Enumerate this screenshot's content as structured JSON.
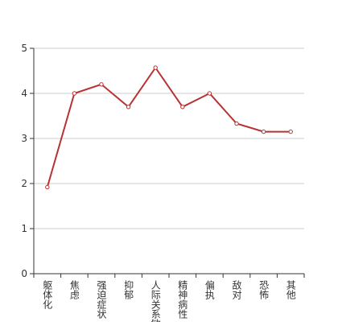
{
  "chart_data": {
    "type": "line",
    "categories": [
      "躯体化",
      "焦虑",
      "强迫症状",
      "抑郁",
      "人际关系敏感",
      "精神病性",
      "偏执",
      "敌对",
      "恐怖",
      "其他"
    ],
    "series": [
      {
        "color": "#b83232",
        "values": [
          1.92,
          4.0,
          4.2,
          3.7,
          4.57,
          3.7,
          4.0,
          3.33,
          3.15,
          3.15
        ]
      }
    ],
    "ylim": [
      0,
      5
    ],
    "yticks": [
      0,
      1,
      2,
      3,
      4,
      5
    ],
    "grid": true
  }
}
